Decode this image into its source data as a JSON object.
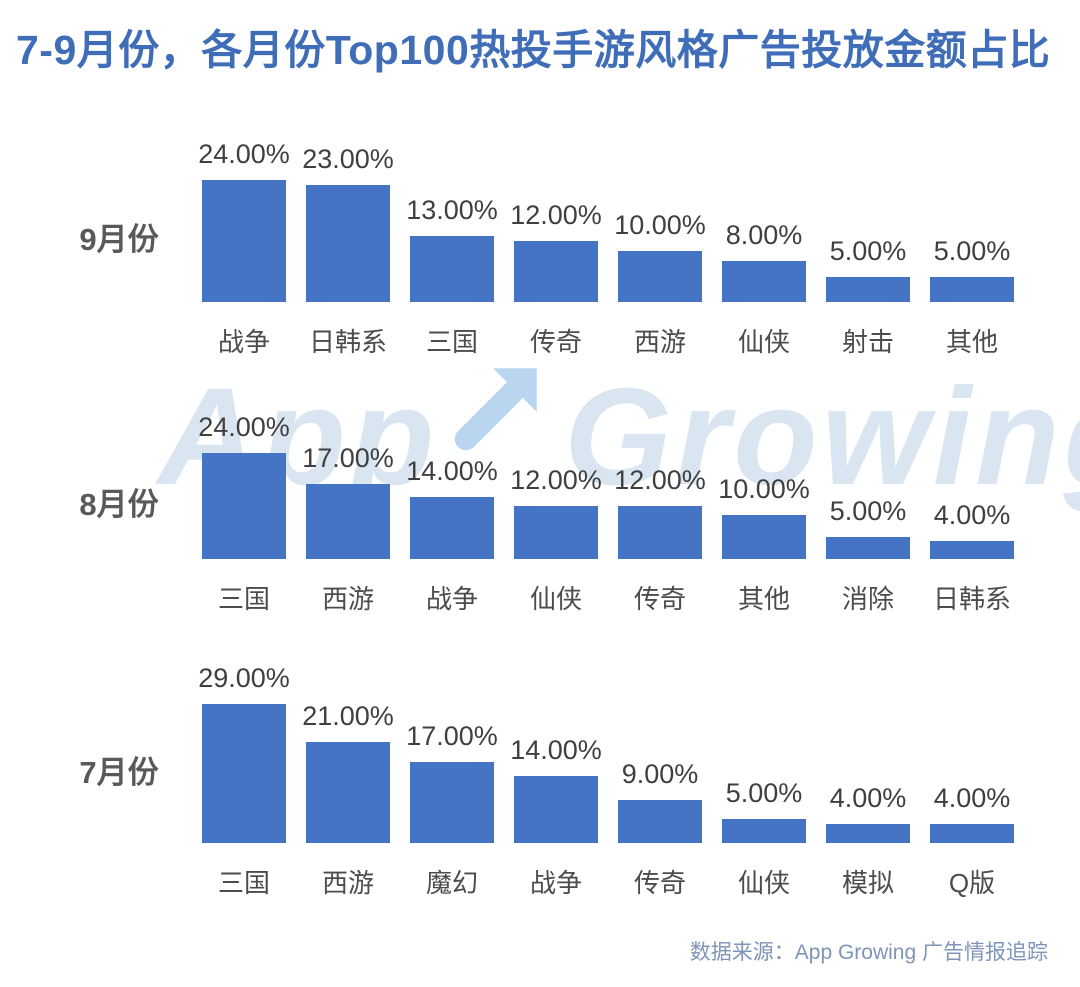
{
  "title": "7-9月份，各月份Top100热投手游风格广告投放金额占比",
  "source": "数据来源：App Growing 广告情报追踪",
  "watermark": {
    "part1": "App",
    "part2": "Growing",
    "arrow_icon": "up-right-arrow"
  },
  "colors": {
    "bar": "#4574c5",
    "title": "#3f6db8",
    "value_label": "#3f3f3f",
    "category_label": "#4c4c4c",
    "month_label": "#595959",
    "source_text": "#7e95b8",
    "watermark_text": "#d9e5f1",
    "watermark_arrow": "#b9d5ef",
    "background": "#ffffff"
  },
  "chart_data": [
    {
      "type": "bar",
      "group": "9月份",
      "categories": [
        "战争",
        "日韩系",
        "三国",
        "传奇",
        "西游",
        "仙侠",
        "射击",
        "其他"
      ],
      "values": [
        24,
        23,
        13,
        12,
        10,
        8,
        5,
        5
      ],
      "labels": [
        "24.00%",
        "23.00%",
        "13.00%",
        "12.00%",
        "10.00%",
        "8.00%",
        "5.00%",
        "5.00%"
      ],
      "unit": "%",
      "data_labels": true,
      "axes": "hidden",
      "grid": false,
      "legend": "none"
    },
    {
      "type": "bar",
      "group": "8月份",
      "categories": [
        "三国",
        "西游",
        "战争",
        "仙侠",
        "传奇",
        "其他",
        "消除",
        "日韩系"
      ],
      "values": [
        24,
        17,
        14,
        12,
        12,
        10,
        5,
        4
      ],
      "labels": [
        "24.00%",
        "17.00%",
        "14.00%",
        "12.00%",
        "12.00%",
        "10.00%",
        "5.00%",
        "4.00%"
      ],
      "unit": "%",
      "data_labels": true,
      "axes": "hidden",
      "grid": false,
      "legend": "none"
    },
    {
      "type": "bar",
      "group": "7月份",
      "categories": [
        "三国",
        "西游",
        "魔幻",
        "战争",
        "传奇",
        "仙侠",
        "模拟",
        "Q版"
      ],
      "values": [
        29,
        21,
        17,
        14,
        9,
        5,
        4,
        4
      ],
      "labels": [
        "29.00%",
        "21.00%",
        "17.00%",
        "14.00%",
        "9.00%",
        "5.00%",
        "4.00%",
        "4.00%"
      ],
      "unit": "%",
      "data_labels": true,
      "axes": "hidden",
      "grid": false,
      "legend": "none"
    }
  ]
}
